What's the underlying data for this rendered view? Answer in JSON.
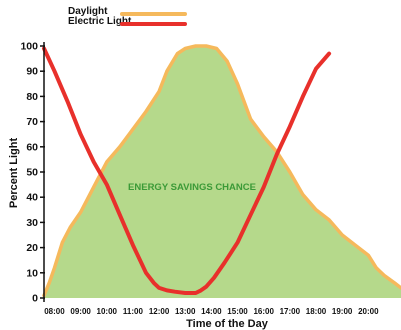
{
  "chart_data": {
    "type": "area",
    "title": "",
    "xlabel": "Time of the Day",
    "ylabel": "Percent Light",
    "ylim": [
      0,
      100
    ],
    "xlim": [
      7.6,
      21.25
    ],
    "x_ticks": [
      "08:00",
      "09:00",
      "10:00",
      "11:00",
      "12:00",
      "13:00",
      "14:00",
      "15:00",
      "16:00",
      "17:00",
      "18:00",
      "19:00",
      "20:00"
    ],
    "y_ticks": [
      0,
      10,
      20,
      30,
      40,
      50,
      60,
      70,
      80,
      90,
      100
    ],
    "legend_placement": "top-left",
    "annotation": "ENERGY SAVINGS CHANCE",
    "series": [
      {
        "name": "Daylight",
        "kind": "area",
        "color": "#f5b95c",
        "fill": "#b5d98b",
        "x": [
          7.6,
          7.8,
          8.0,
          8.3,
          8.6,
          9.0,
          9.5,
          10.0,
          10.5,
          11.0,
          11.5,
          12.0,
          12.3,
          12.7,
          13.0,
          13.4,
          13.8,
          14.2,
          14.6,
          15.0,
          15.5,
          16.0,
          16.5,
          17.0,
          17.5,
          18.0,
          18.5,
          19.0,
          19.5,
          20.0,
          20.3,
          20.6,
          21.0,
          21.25
        ],
        "values": [
          1,
          6,
          12,
          22,
          28,
          34,
          44,
          54,
          60,
          67,
          74,
          82,
          90,
          97,
          99,
          100,
          100,
          99,
          94,
          85,
          71,
          64,
          58,
          50,
          41,
          35,
          31,
          25,
          21,
          17,
          12,
          9,
          6,
          4
        ]
      },
      {
        "name": "Electric Light",
        "kind": "line",
        "color": "#e8302b",
        "x": [
          7.6,
          8.0,
          8.5,
          9.0,
          9.5,
          10.0,
          10.5,
          11.0,
          11.5,
          11.8,
          12.0,
          12.3,
          12.6,
          13.0,
          13.4,
          13.6,
          13.8,
          14.1,
          14.5,
          15.0,
          15.5,
          16.0,
          16.5,
          17.0,
          17.5,
          18.0,
          18.5
        ],
        "values": [
          99,
          90,
          78,
          65,
          54,
          45,
          33,
          21,
          10,
          6,
          4,
          3,
          2.5,
          2,
          2,
          3,
          4.5,
          8,
          14,
          22,
          33,
          44,
          57,
          68,
          80,
          91,
          97
        ]
      }
    ]
  },
  "colors": {
    "daylight_fill": "#b5d98b",
    "daylight_edge": "#f5b95c",
    "electric_line": "#e8302b",
    "annotation": "#3b9a37",
    "axis": "#111111"
  }
}
